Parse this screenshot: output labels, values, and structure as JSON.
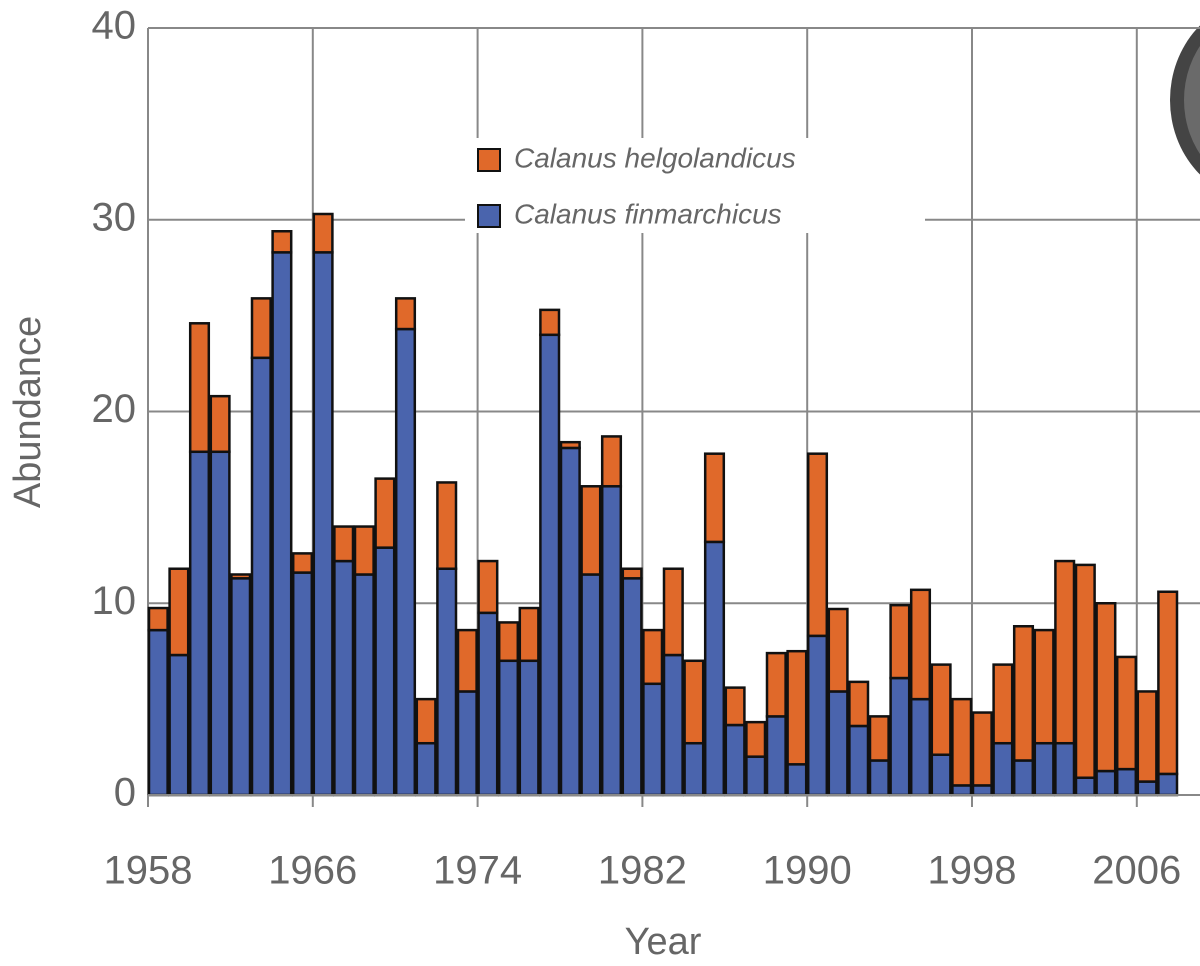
{
  "chart_data": {
    "type": "stacked-bar",
    "x_label": "Year",
    "y_label": "Abundance",
    "x": [
      1958,
      1959,
      1960,
      1961,
      1962,
      1963,
      1964,
      1965,
      1966,
      1967,
      1968,
      1969,
      1970,
      1971,
      1972,
      1973,
      1974,
      1975,
      1976,
      1977,
      1978,
      1979,
      1980,
      1981,
      1982,
      1983,
      1984,
      1985,
      1986,
      1987,
      1988,
      1989,
      1990,
      1991,
      1992,
      1993,
      1994,
      1995,
      1996,
      1997,
      1998,
      1999,
      2000,
      2001,
      2002,
      2003,
      2004,
      2005,
      2006,
      2007
    ],
    "series": [
      {
        "name": "Calanus helgolandicus",
        "color": "#e0692a",
        "values": [
          1.15,
          4.5,
          6.7,
          2.9,
          0.2,
          3.1,
          1.1,
          1.0,
          2.0,
          1.8,
          2.5,
          3.6,
          1.6,
          2.3,
          4.5,
          3.2,
          2.7,
          2.0,
          2.75,
          1.3,
          0.3,
          4.6,
          2.6,
          0.5,
          2.8,
          4.5,
          4.3,
          4.6,
          1.95,
          1.8,
          3.3,
          5.9,
          9.5,
          4.3,
          2.3,
          2.3,
          3.8,
          5.7,
          4.7,
          4.5,
          3.8,
          4.1,
          7.0,
          5.9,
          9.5,
          11.1,
          8.75,
          5.85,
          4.7,
          9.5
        ]
      },
      {
        "name": "Calanus finmarchicus",
        "color": "#4a64ad",
        "values": [
          8.6,
          7.3,
          17.9,
          17.9,
          11.3,
          22.8,
          28.3,
          11.6,
          28.3,
          12.2,
          11.5,
          12.9,
          24.3,
          2.7,
          11.8,
          5.4,
          9.5,
          7.0,
          7.0,
          24.0,
          18.1,
          11.5,
          16.1,
          11.3,
          5.8,
          7.3,
          2.7,
          13.2,
          3.65,
          2.0,
          4.1,
          1.6,
          8.3,
          5.4,
          3.6,
          1.8,
          6.1,
          5.0,
          2.1,
          0.5,
          0.5,
          2.7,
          1.8,
          2.7,
          2.7,
          0.9,
          1.25,
          1.35,
          0.7,
          1.1
        ]
      }
    ],
    "xlim": [
      1958,
      2008
    ],
    "xticks": [
      1958,
      1966,
      1974,
      1982,
      1990,
      1998,
      2006
    ],
    "ylim": [
      0,
      40
    ],
    "yticks": [
      0,
      10,
      20,
      30,
      40
    ],
    "grid": true
  }
}
